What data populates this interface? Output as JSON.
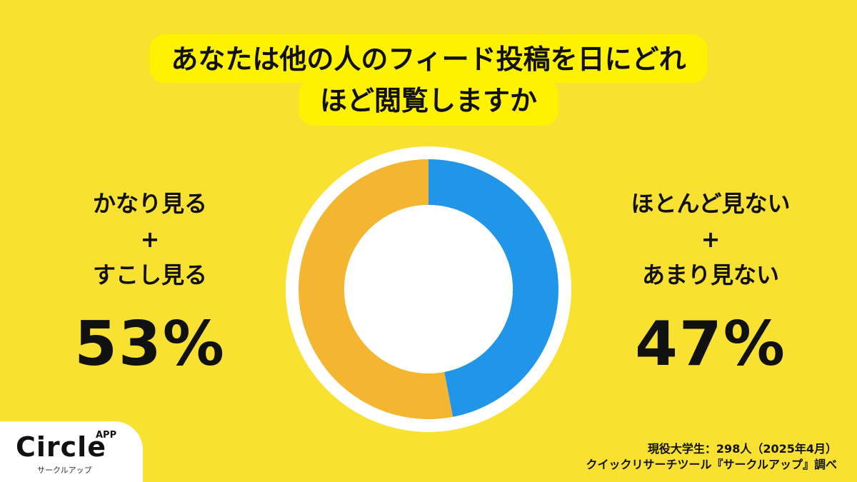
{
  "title": {
    "line1": "あなたは他の人のフィード投稿を日にどれ",
    "line2": "ほど閲覧しますか"
  },
  "chart_data": {
    "type": "pie",
    "donut": true,
    "slices": [
      {
        "label": "ほとんど見ない＋あまり見ない",
        "value": 47,
        "color": "#2196e8"
      },
      {
        "label": "かなり見る＋すこし見る",
        "value": 53,
        "color": "#f4b630"
      }
    ]
  },
  "left_label": {
    "line1": "かなり見る",
    "line2": "+",
    "line3": "すこし見る",
    "percent": "53%"
  },
  "right_label": {
    "line1": "ほとんど見ない",
    "line2": "+",
    "line3": "あまり見ない",
    "percent": "47%"
  },
  "logo": {
    "brand": "Circle",
    "superscript": "APP",
    "kana": "サークルアップ"
  },
  "source": {
    "line1": "現役大学生：298人（2025年4月）",
    "line2": "クイックリサーチツール『サークルアップ』調べ"
  }
}
